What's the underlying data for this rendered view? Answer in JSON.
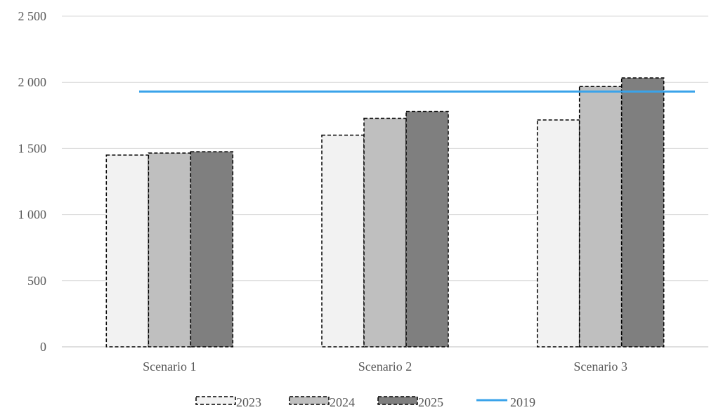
{
  "chart_data": {
    "type": "bar",
    "categories": [
      "Scenario 1",
      "Scenario 2",
      "Scenario 3"
    ],
    "series": [
      {
        "name": "2023",
        "values": [
          1450,
          1600,
          1715
        ],
        "color": "#f2f2f2",
        "border": "dashed"
      },
      {
        "name": "2024",
        "values": [
          1465,
          1728,
          1968
        ],
        "color": "#bfbfbf",
        "border": "dashed"
      },
      {
        "name": "2025",
        "values": [
          1475,
          1780,
          2033
        ],
        "color": "#7f7f7f",
        "border": "dashed"
      }
    ],
    "reference_line": {
      "name": "2019",
      "value": 1930,
      "color": "#3aa3ea"
    },
    "ylim": [
      0,
      2500
    ],
    "yticks": [
      0,
      500,
      1000,
      1500,
      2000,
      2500
    ],
    "ytick_labels": [
      "0",
      "500",
      "1 000",
      "1 500",
      "2 000",
      "2 500"
    ],
    "grid": true,
    "legend_position": "bottom",
    "title": "",
    "xlabel": "",
    "ylabel": ""
  }
}
